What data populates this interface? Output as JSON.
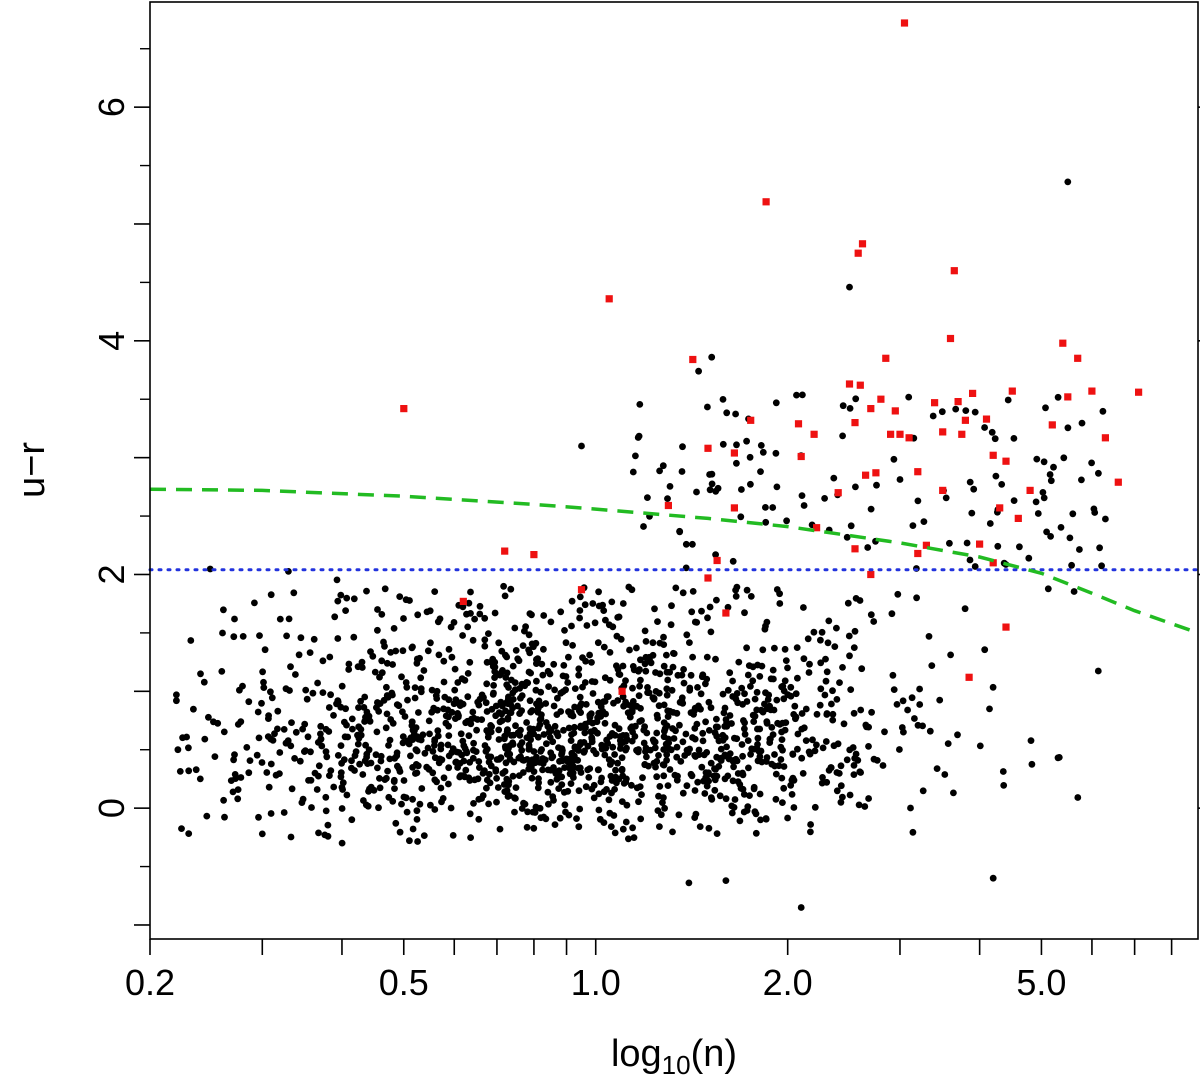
{
  "chart_data": {
    "type": "scatter",
    "xscale": "log",
    "xlim": [
      0.2,
      8.8
    ],
    "ylim": [
      -1.12,
      6.9
    ],
    "xlabel_main": "log",
    "xlabel_sub": "10",
    "xlabel_rest": "(n)",
    "ylabel": "u−r",
    "x_tick_labels": [
      {
        "v": 0.2,
        "label": "0.2"
      },
      {
        "v": 0.5,
        "label": "0.5"
      },
      {
        "v": 1.0,
        "label": "1.0"
      },
      {
        "v": 2.0,
        "label": "2.0"
      },
      {
        "v": 5.0,
        "label": "5.0"
      }
    ],
    "x_minor_ticks": [
      0.3,
      0.4,
      0.6,
      0.7,
      0.8,
      0.9,
      3,
      4,
      6,
      7,
      8
    ],
    "y_tick_labels": [
      {
        "v": 0,
        "label": "0"
      },
      {
        "v": 2,
        "label": "2"
      },
      {
        "v": 4,
        "label": "4"
      },
      {
        "v": 6,
        "label": "6"
      }
    ],
    "y_minor_ticks": [
      -1,
      1,
      3,
      5
    ],
    "grid": false,
    "colors": {
      "black_points": "#000000",
      "red_points": "#ee1111",
      "green_curve": "#22bb22",
      "blue_line": "#2233dd"
    },
    "horizontal_line": {
      "y": 2.04,
      "style": "dotted",
      "color": "#2233dd"
    },
    "dashed_curve": {
      "style": "dashed",
      "color": "#22bb22",
      "x": [
        0.2,
        0.3,
        0.5,
        0.8,
        1.0,
        1.5,
        2.0,
        3.0,
        4.0,
        5.0,
        6.0,
        7.0,
        8.8
      ],
      "y": [
        2.73,
        2.72,
        2.67,
        2.6,
        2.56,
        2.48,
        2.41,
        2.27,
        2.15,
        2.01,
        1.84,
        1.69,
        1.5
      ]
    },
    "red_points": [
      [
        0.5,
        3.42
      ],
      [
        1.05,
        4.36
      ],
      [
        1.42,
        3.84
      ],
      [
        1.5,
        3.08
      ],
      [
        1.65,
        3.04
      ],
      [
        1.75,
        3.32
      ],
      [
        1.85,
        5.19
      ],
      [
        2.08,
        3.29
      ],
      [
        2.1,
        3.01
      ],
      [
        2.2,
        3.2
      ],
      [
        2.22,
        2.4
      ],
      [
        2.5,
        3.63
      ],
      [
        2.58,
        4.75
      ],
      [
        2.62,
        4.83
      ],
      [
        2.55,
        3.3
      ],
      [
        2.6,
        3.62
      ],
      [
        2.7,
        3.42
      ],
      [
        2.8,
        3.5
      ],
      [
        2.85,
        3.85
      ],
      [
        2.9,
        3.2
      ],
      [
        3.0,
        3.2
      ],
      [
        3.1,
        3.17
      ],
      [
        3.05,
        6.72
      ],
      [
        3.2,
        2.88
      ],
      [
        3.4,
        3.47
      ],
      [
        3.5,
        3.22
      ],
      [
        3.6,
        4.02
      ],
      [
        3.65,
        4.6
      ],
      [
        3.7,
        3.48
      ],
      [
        3.8,
        3.32
      ],
      [
        3.9,
        3.55
      ],
      [
        4.0,
        2.26
      ],
      [
        4.1,
        3.33
      ],
      [
        4.2,
        3.02
      ],
      [
        4.3,
        2.57
      ],
      [
        4.4,
        2.97
      ],
      [
        4.5,
        3.57
      ],
      [
        4.6,
        2.48
      ],
      [
        4.8,
        2.72
      ],
      [
        5.2,
        3.28
      ],
      [
        5.4,
        3.98
      ],
      [
        5.5,
        3.52
      ],
      [
        5.7,
        3.85
      ],
      [
        6.0,
        3.57
      ],
      [
        6.3,
        3.17
      ],
      [
        6.6,
        2.79
      ],
      [
        7.1,
        3.56
      ],
      [
        2.4,
        2.7
      ],
      [
        2.65,
        2.85
      ],
      [
        2.7,
        2.0
      ],
      [
        3.3,
        2.25
      ],
      [
        3.5,
        2.72
      ],
      [
        0.62,
        1.77
      ],
      [
        0.8,
        2.17
      ],
      [
        0.95,
        1.87
      ],
      [
        1.5,
        1.97
      ],
      [
        1.6,
        1.67
      ],
      [
        1.1,
        1.0
      ],
      [
        1.3,
        2.59
      ],
      [
        3.85,
        1.12
      ],
      [
        4.4,
        1.55
      ],
      [
        1.55,
        2.12
      ],
      [
        2.95,
        3.4
      ],
      [
        0.72,
        2.2
      ],
      [
        4.2,
        2.1
      ],
      [
        3.75,
        3.2
      ],
      [
        2.75,
        2.87
      ],
      [
        1.65,
        2.57
      ],
      [
        2.55,
        2.22
      ],
      [
        3.2,
        2.18
      ]
    ],
    "black_points_highlights": [
      [
        5.5,
        5.36
      ],
      [
        2.5,
        4.46
      ],
      [
        1.45,
        3.74
      ],
      [
        1.52,
        3.86
      ],
      [
        0.95,
        3.1
      ],
      [
        0.22,
        0.92
      ],
      [
        0.22,
        0.97
      ],
      [
        0.23,
        0.32
      ],
      [
        0.24,
        1.15
      ],
      [
        0.28,
        1.47
      ],
      [
        1.4,
        -0.64
      ],
      [
        2.1,
        -0.85
      ],
      [
        1.6,
        -0.62
      ],
      [
        4.2,
        -0.6
      ],
      [
        0.3,
        -0.22
      ]
    ]
  }
}
